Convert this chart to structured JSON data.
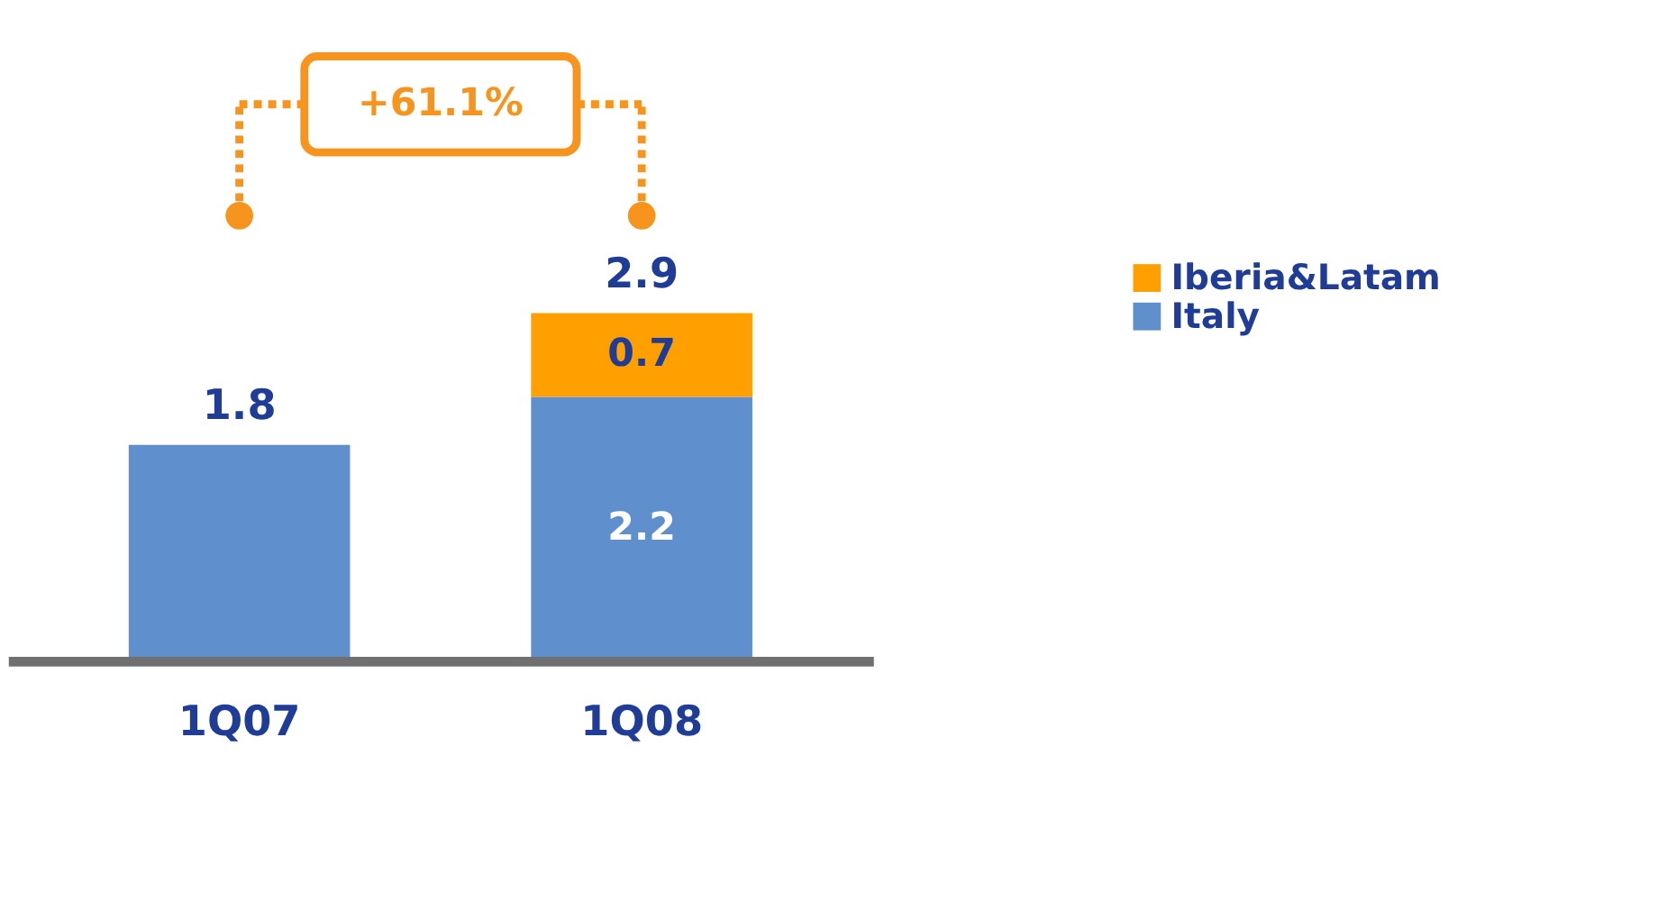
{
  "chart_data": {
    "type": "bar",
    "stacked": true,
    "categories": [
      "1Q07",
      "1Q08"
    ],
    "series": [
      {
        "name": "Italy",
        "color": "#5f8fcc",
        "values": [
          1.8,
          2.2
        ],
        "value_labels": [
          null,
          "2.2"
        ]
      },
      {
        "name": "Iberia&Latam",
        "color": "#ff9f00",
        "values": [
          null,
          0.7
        ],
        "value_labels": [
          null,
          "0.7"
        ]
      }
    ],
    "totals": [
      "1.8",
      "2.9"
    ],
    "annotations": [
      "+61.1%"
    ],
    "legend": "right",
    "grid": false
  }
}
